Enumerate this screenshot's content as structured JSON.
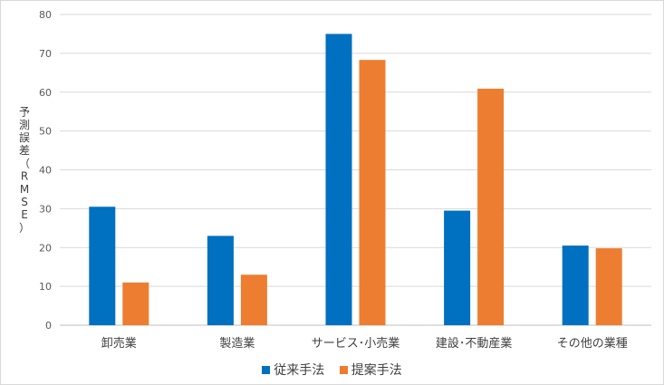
{
  "chart_data": {
    "type": "bar",
    "categories": [
      "卸売業",
      "製造業",
      "サービス･小売業",
      "建設･不動産業",
      "その他の業種"
    ],
    "series": [
      {
        "name": "従来手法",
        "color": "#0070C0",
        "values": [
          30.5,
          23,
          75,
          29.5,
          20.5
        ]
      },
      {
        "name": "提案手法",
        "color": "#ED7D31",
        "values": [
          11,
          13,
          68.3,
          60.9,
          19.8
        ]
      }
    ],
    "title": "",
    "xlabel": "",
    "ylabel": "予測誤差（RMSE）",
    "ylim": [
      0,
      80
    ],
    "yticks": [
      0,
      10,
      20,
      30,
      40,
      50,
      60,
      70,
      80
    ],
    "grid": true,
    "legend_position": "bottom"
  }
}
